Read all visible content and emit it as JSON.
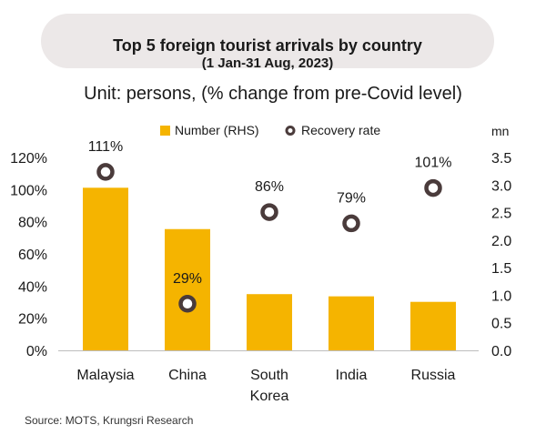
{
  "title": "Top 5 foreign tourist arrivals by country",
  "subtitle_period": "(1 Jan-31 Aug, 2023)",
  "unit_text": "Unit: persons, (% change from pre-Covid level)",
  "source": "Source: MOTS, Krungsri Research",
  "colors": {
    "bar": "#f5b400",
    "marker_stroke": "#4a3b3b",
    "title_bg": "#ece8e8"
  },
  "chart_data": {
    "type": "bar",
    "categories": [
      "Malaysia",
      "China",
      "South Korea",
      "India",
      "Russia"
    ],
    "category_lines": [
      [
        "Malaysia"
      ],
      [
        "China"
      ],
      [
        "South",
        "Korea"
      ],
      [
        "India"
      ],
      [
        "Russia"
      ]
    ],
    "series": [
      {
        "name": "Number (RHS)",
        "type": "bar",
        "axis": "right",
        "unit": "mn",
        "values": [
          2.95,
          2.2,
          1.02,
          0.98,
          0.88
        ]
      },
      {
        "name": "Recovery rate",
        "type": "scatter",
        "axis": "left",
        "values": [
          111,
          29,
          86,
          79,
          101
        ],
        "labels": [
          "111%",
          "29%",
          "86%",
          "79%",
          "101%"
        ]
      }
    ],
    "y_left": {
      "ylim": [
        0,
        120
      ],
      "ticks": [
        0,
        20,
        40,
        60,
        80,
        100,
        120
      ],
      "tick_labels": [
        "0%",
        "20%",
        "40%",
        "60%",
        "80%",
        "100%",
        "120%"
      ]
    },
    "y_right": {
      "label": "mn",
      "ylim": [
        0,
        3.5
      ],
      "ticks": [
        0,
        0.5,
        1,
        1.5,
        2,
        2.5,
        3,
        3.5
      ],
      "tick_labels": [
        "0.0",
        "0.5",
        "1.0",
        "1.5",
        "2.0",
        "2.5",
        "3.0",
        "3.5"
      ]
    },
    "legend_position": "top-center",
    "grid": false
  }
}
